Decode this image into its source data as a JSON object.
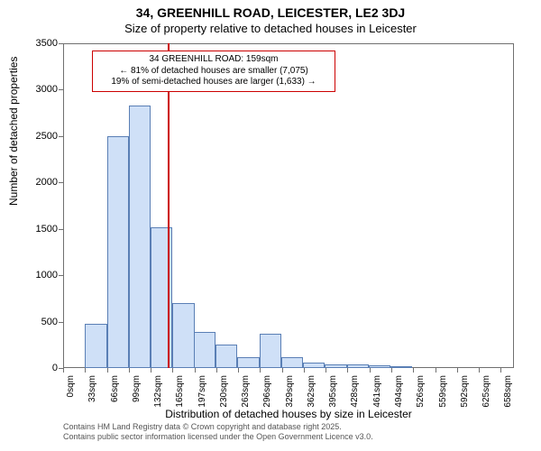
{
  "chart": {
    "type": "histogram",
    "title_line1": "34, GREENHILL ROAD, LEICESTER, LE2 3DJ",
    "title_line2": "Size of property relative to detached houses in Leicester",
    "xlabel": "Distribution of detached houses by size in Leicester",
    "ylabel": "Number of detached properties",
    "background_color": "#ffffff",
    "axis_color": "#707070",
    "bar_fill": "#cfe0f7",
    "bar_stroke": "#5a7fb5",
    "reference_line_color": "#cc0000",
    "annotation_border_color": "#cc0000",
    "title_fontsize": 14,
    "subtitle_fontsize": 13,
    "label_fontsize": 12,
    "tick_fontsize": 11,
    "xtick_fontsize": 10,
    "ylim": [
      0,
      3500
    ],
    "ytick_step": 500,
    "yticks": [
      0,
      500,
      1000,
      1500,
      2000,
      2500,
      3000,
      3500
    ],
    "xtick_labels": [
      "0sqm",
      "33sqm",
      "66sqm",
      "99sqm",
      "132sqm",
      "165sqm",
      "197sqm",
      "230sqm",
      "263sqm",
      "296sqm",
      "329sqm",
      "362sqm",
      "395sqm",
      "428sqm",
      "461sqm",
      "494sqm",
      "526sqm",
      "559sqm",
      "592sqm",
      "625sqm",
      "658sqm"
    ],
    "xtick_step_sqm": 33,
    "xlim_sqm": [
      0,
      680
    ],
    "bars": [
      {
        "x": 33,
        "count": 480
      },
      {
        "x": 66,
        "count": 2500
      },
      {
        "x": 99,
        "count": 2830
      },
      {
        "x": 132,
        "count": 1520
      },
      {
        "x": 165,
        "count": 700
      },
      {
        "x": 197,
        "count": 390
      },
      {
        "x": 230,
        "count": 250
      },
      {
        "x": 263,
        "count": 120
      },
      {
        "x": 296,
        "count": 370
      },
      {
        "x": 329,
        "count": 120
      },
      {
        "x": 362,
        "count": 60
      },
      {
        "x": 395,
        "count": 40
      },
      {
        "x": 428,
        "count": 40
      },
      {
        "x": 461,
        "count": 30
      },
      {
        "x": 494,
        "count": 20
      },
      {
        "x": 526,
        "count": 0
      },
      {
        "x": 559,
        "count": 0
      },
      {
        "x": 592,
        "count": 0
      },
      {
        "x": 625,
        "count": 0
      },
      {
        "x": 658,
        "count": 0
      }
    ],
    "bar_width_sqm": 33,
    "reference_x_sqm": 159,
    "annotation": {
      "line1": "34 GREENHILL ROAD: 159sqm",
      "line2": "← 81% of detached houses are smaller (7,075)",
      "line3": "19% of semi-detached houses are larger (1,633) →"
    },
    "footer_line1": "Contains HM Land Registry data © Crown copyright and database right 2025.",
    "footer_line2": "Contains public sector information licensed under the Open Government Licence v3.0."
  }
}
